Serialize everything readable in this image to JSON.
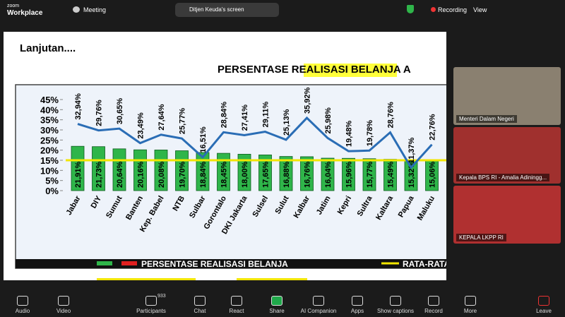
{
  "topbar": {
    "brand_small": "zoom",
    "brand": "Workplace",
    "meeting": "Meeting",
    "screen": "Ditjen Keuda's screen",
    "recording": "Recording",
    "view": "View"
  },
  "slide": {
    "heading": "Lanjutan...."
  },
  "chart_data": {
    "type": "bar-line",
    "title": {
      "before": "PERSENTASE ",
      "highlight": "REALISASI BELANJA",
      "after": " A"
    },
    "categories": [
      "Jabar",
      "DIY",
      "Sumut",
      "Banten",
      "Kep. Babel",
      "NTB",
      "Sulbar",
      "Gorontalo",
      "DKI Jakarta",
      "Sulsel",
      "Sulut",
      "Kalbar",
      "Jatim",
      "Kepri",
      "Sultra",
      "Kaltara",
      "Papua",
      "Maluku"
    ],
    "series": [
      {
        "name": "PERSENTASE REALISASI BELANJA",
        "kind": "bar",
        "color": "#2fb54a",
        "values": [
          21.91,
          21.73,
          20.64,
          20.16,
          20.08,
          19.7,
          18.84,
          18.45,
          18.0,
          17.65,
          16.88,
          16.76,
          16.04,
          15.96,
          15.77,
          15.49,
          15.32,
          15.06
        ],
        "value_labels": [
          "21,91%",
          "21,73%",
          "20,64%",
          "20,16%",
          "20,08%",
          "19,70%",
          "18,84%",
          "18,45%",
          "18,00%",
          "17,65%",
          "16,88%",
          "16,76%",
          "16,04%",
          "15,96%",
          "15,77%",
          "15,49%",
          "15,32%",
          "15,06%"
        ]
      },
      {
        "kind": "line",
        "color": "#2a6db5",
        "values": [
          32.94,
          29.76,
          30.65,
          23.49,
          27.64,
          25.77,
          16.51,
          28.84,
          27.41,
          29.11,
          25.13,
          35.92,
          25.98,
          19.48,
          19.78,
          28.76,
          11.37,
          22.76
        ],
        "value_labels": [
          "32,94%",
          "29,76%",
          "30,65%",
          "23,49%",
          "27,64%",
          "25,77%",
          "16,51%",
          "28,84%",
          "27,41%",
          "29,11%",
          "25,13%",
          "35,92%",
          "25,98%",
          "19,48%",
          "19,78%",
          "28,76%",
          "11,37%",
          "22,76%"
        ]
      }
    ],
    "reference_line": {
      "name": "RATA-RATA",
      "value": 15,
      "color": "#f2e600"
    },
    "ylim": [
      0,
      45
    ],
    "yticks": [
      {
        "value": 0,
        "label": "0%"
      },
      {
        "value": 5,
        "label": "5%"
      },
      {
        "value": 10,
        "label": "10%"
      },
      {
        "value": 15,
        "label": "15%"
      },
      {
        "value": 20,
        "label": "20%"
      },
      {
        "value": 25,
        "label": "25%"
      },
      {
        "value": 30,
        "label": "30%"
      },
      {
        "value": 35,
        "label": "35%"
      },
      {
        "value": 40,
        "label": "40%"
      },
      {
        "value": 45,
        "label": "45%"
      }
    ]
  },
  "participants": [
    "Menteri Dalam Negeri",
    "Kepala BPS RI - Amalia Adiningg...",
    "KEPALA LKPP RI"
  ],
  "toolbar": {
    "count": "933",
    "left": [
      "Audio",
      "Video"
    ],
    "center": [
      "Participants",
      "Chat",
      "React",
      "Share",
      "AI Companion",
      "Apps",
      "Show captions",
      "Record",
      "More"
    ],
    "leave": "Leave"
  }
}
